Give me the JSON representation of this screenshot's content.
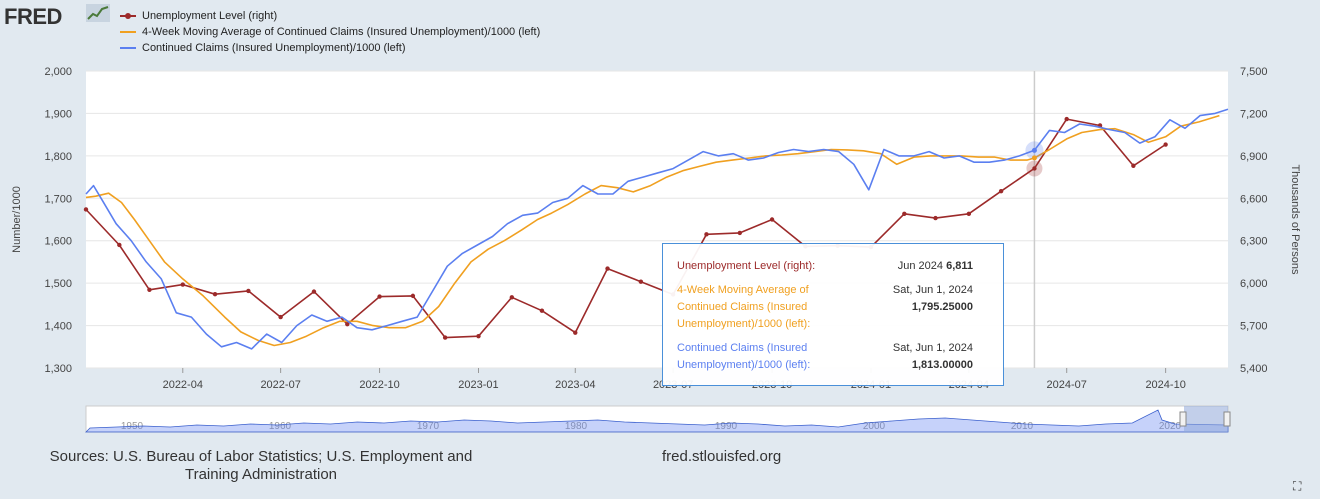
{
  "header": {
    "logo": "FRED"
  },
  "legend": [
    {
      "label": "Unemployment Level (right)",
      "color": "#9c2a2a",
      "marker": true
    },
    {
      "label": "4-Week Moving Average of Continued Claims (Insured Unemployment)/1000 (left)",
      "color": "#f0a020",
      "marker": false
    },
    {
      "label": "Continued Claims (Insured Unemployment)/1000 (left)",
      "color": "#5b7ff0",
      "marker": false
    }
  ],
  "tooltip": {
    "r1_label": "Unemployment Level (right):",
    "r1_date": "Jun 2024",
    "r1_value": "6,811",
    "r2_label": "4-Week Moving Average of Continued Claims (Insured Unemployment)/1000 (left):",
    "r2_date": "Sat, Jun 1, 2024",
    "r2_value": "1,795.25000",
    "r3_label": "Continued Claims (Insured Unemployment)/1000 (left):",
    "r3_date": "Sat, Jun 1, 2024",
    "r3_value": "1,813.00000"
  },
  "footer": {
    "sources": "Sources: U.S. Bureau of Labor Statistics; U.S. Employment and Training Administration",
    "website": "fred.stlouisfed.org"
  },
  "chart_data": {
    "type": "line",
    "xlabels": [
      "2022-04",
      "2022-07",
      "2022-10",
      "2023-01",
      "2023-04",
      "2023-07",
      "2023-10",
      "2024-01",
      "2024-04",
      "2024-07",
      "2024-10"
    ],
    "ylabel_left": "Number/1000",
    "ylabel_right": "Thousands of Persons",
    "ylim_left": [
      1300,
      2000
    ],
    "ylim_right": [
      5400,
      7500
    ],
    "yticks_left": [
      "1,300",
      "1,400",
      "1,500",
      "1,600",
      "1,700",
      "1,800",
      "1,900",
      "2,000"
    ],
    "yticks_right": [
      "5,400",
      "5,700",
      "6,000",
      "6,300",
      "6,600",
      "6,900",
      "7,200",
      "7,500"
    ],
    "x_start": "2022-01-01",
    "x_end": "2024-11-28",
    "series": [
      {
        "name": "Unemployment Level (right)",
        "axis": "right",
        "color": "#9c2a2a",
        "markers": true,
        "x": [
          "2022-01-01",
          "2022-02-01",
          "2022-03-01",
          "2022-04-01",
          "2022-05-01",
          "2022-06-01",
          "2022-07-01",
          "2022-08-01",
          "2022-09-01",
          "2022-10-01",
          "2022-11-01",
          "2022-12-01",
          "2023-01-01",
          "2023-02-01",
          "2023-03-01",
          "2023-04-01",
          "2023-05-01",
          "2023-06-01",
          "2023-07-01",
          "2023-08-01",
          "2023-09-01",
          "2023-10-01",
          "2023-11-01",
          "2023-12-01",
          "2024-01-01",
          "2024-02-01",
          "2024-03-01",
          "2024-04-01",
          "2024-05-01",
          "2024-06-01",
          "2024-07-01",
          "2024-08-01",
          "2024-09-01",
          "2024-10-01"
        ],
        "y": [
          6521,
          6270,
          5953,
          5990,
          5922,
          5945,
          5760,
          5940,
          5710,
          5905,
          5910,
          5615,
          5625,
          5900,
          5805,
          5650,
          6103,
          6010,
          5920,
          6345,
          6355,
          6450,
          6260,
          6265,
          6255,
          6490,
          6460,
          6490,
          6650,
          6811,
          7160,
          7115,
          6830,
          6980
        ]
      },
      {
        "name": "4-Week Moving Average of Continued Claims (Insured Unemployment)/1000 (left)",
        "axis": "left",
        "color": "#f0a020",
        "x": [
          "2022-01-01",
          "2022-01-10",
          "2022-01-22",
          "2022-02-03",
          "2022-02-15",
          "2022-03-01",
          "2022-03-15",
          "2022-04-01",
          "2022-04-20",
          "2022-05-10",
          "2022-05-25",
          "2022-06-10",
          "2022-06-25",
          "2022-07-10",
          "2022-07-25",
          "2022-08-10",
          "2022-08-25",
          "2022-09-10",
          "2022-09-25",
          "2022-10-10",
          "2022-10-25",
          "2022-11-10",
          "2022-11-25",
          "2022-12-10",
          "2022-12-25",
          "2023-01-10",
          "2023-01-25",
          "2023-02-10",
          "2023-02-25",
          "2023-03-10",
          "2023-03-25",
          "2023-04-10",
          "2023-04-25",
          "2023-05-10",
          "2023-05-25",
          "2023-06-10",
          "2023-06-25",
          "2023-07-10",
          "2023-07-25",
          "2023-08-10",
          "2023-08-25",
          "2023-09-10",
          "2023-09-25",
          "2023-10-10",
          "2023-10-25",
          "2023-11-10",
          "2023-11-25",
          "2023-12-10",
          "2023-12-25",
          "2024-01-10",
          "2024-01-25",
          "2024-02-10",
          "2024-02-25",
          "2024-03-10",
          "2024-03-25",
          "2024-04-10",
          "2024-04-25",
          "2024-05-10",
          "2024-05-25",
          "2024-06-01",
          "2024-06-15",
          "2024-07-01",
          "2024-07-15",
          "2024-08-01",
          "2024-08-15",
          "2024-09-01",
          "2024-09-15",
          "2024-10-01",
          "2024-10-15",
          "2024-11-01",
          "2024-11-20"
        ],
        "y": [
          1702,
          1705,
          1712,
          1690,
          1650,
          1600,
          1550,
          1510,
          1470,
          1420,
          1385,
          1365,
          1353,
          1360,
          1375,
          1395,
          1410,
          1410,
          1400,
          1395,
          1395,
          1410,
          1445,
          1500,
          1550,
          1580,
          1600,
          1625,
          1650,
          1665,
          1685,
          1710,
          1730,
          1725,
          1715,
          1730,
          1750,
          1765,
          1775,
          1785,
          1790,
          1795,
          1800,
          1802,
          1805,
          1810,
          1815,
          1814,
          1812,
          1805,
          1780,
          1797,
          1800,
          1800,
          1800,
          1797,
          1797,
          1790,
          1790,
          1795,
          1815,
          1840,
          1855,
          1862,
          1864,
          1850,
          1832,
          1845,
          1870,
          1880,
          1895
        ]
      },
      {
        "name": "Continued Claims (Insured Unemployment)/1000 (left)",
        "axis": "left",
        "color": "#5b7ff0",
        "x": [
          "2022-01-01",
          "2022-01-08",
          "2022-01-15",
          "2022-01-29",
          "2022-02-12",
          "2022-02-26",
          "2022-03-12",
          "2022-03-26",
          "2022-04-09",
          "2022-04-23",
          "2022-05-07",
          "2022-05-21",
          "2022-06-04",
          "2022-06-18",
          "2022-07-02",
          "2022-07-16",
          "2022-07-30",
          "2022-08-13",
          "2022-08-27",
          "2022-09-10",
          "2022-09-24",
          "2022-10-08",
          "2022-10-22",
          "2022-11-05",
          "2022-11-19",
          "2022-12-03",
          "2022-12-17",
          "2022-12-31",
          "2023-01-14",
          "2023-01-28",
          "2023-02-11",
          "2023-02-25",
          "2023-03-11",
          "2023-03-25",
          "2023-04-08",
          "2023-04-22",
          "2023-05-06",
          "2023-05-20",
          "2023-06-03",
          "2023-06-17",
          "2023-07-01",
          "2023-07-15",
          "2023-07-29",
          "2023-08-12",
          "2023-08-26",
          "2023-09-09",
          "2023-09-23",
          "2023-10-07",
          "2023-10-21",
          "2023-11-04",
          "2023-11-18",
          "2023-12-02",
          "2023-12-16",
          "2023-12-30",
          "2024-01-13",
          "2024-01-27",
          "2024-02-10",
          "2024-02-24",
          "2024-03-09",
          "2024-03-23",
          "2024-04-06",
          "2024-04-20",
          "2024-05-04",
          "2024-05-18",
          "2024-06-01",
          "2024-06-15",
          "2024-06-29",
          "2024-07-13",
          "2024-07-27",
          "2024-08-10",
          "2024-08-24",
          "2024-09-07",
          "2024-09-21",
          "2024-10-05",
          "2024-10-19",
          "2024-11-02",
          "2024-11-16",
          "2024-11-28"
        ],
        "y": [
          1710,
          1730,
          1700,
          1640,
          1600,
          1550,
          1510,
          1430,
          1420,
          1380,
          1350,
          1360,
          1345,
          1380,
          1360,
          1400,
          1425,
          1410,
          1420,
          1395,
          1390,
          1400,
          1410,
          1420,
          1480,
          1540,
          1570,
          1590,
          1610,
          1640,
          1660,
          1665,
          1690,
          1700,
          1730,
          1710,
          1710,
          1740,
          1750,
          1760,
          1770,
          1790,
          1810,
          1800,
          1805,
          1790,
          1795,
          1808,
          1815,
          1810,
          1815,
          1810,
          1780,
          1720,
          1815,
          1800,
          1800,
          1810,
          1795,
          1800,
          1785,
          1785,
          1790,
          1800,
          1813,
          1860,
          1855,
          1875,
          1870,
          1862,
          1855,
          1830,
          1845,
          1885,
          1865,
          1895,
          1900,
          1910
        ]
      }
    ]
  }
}
